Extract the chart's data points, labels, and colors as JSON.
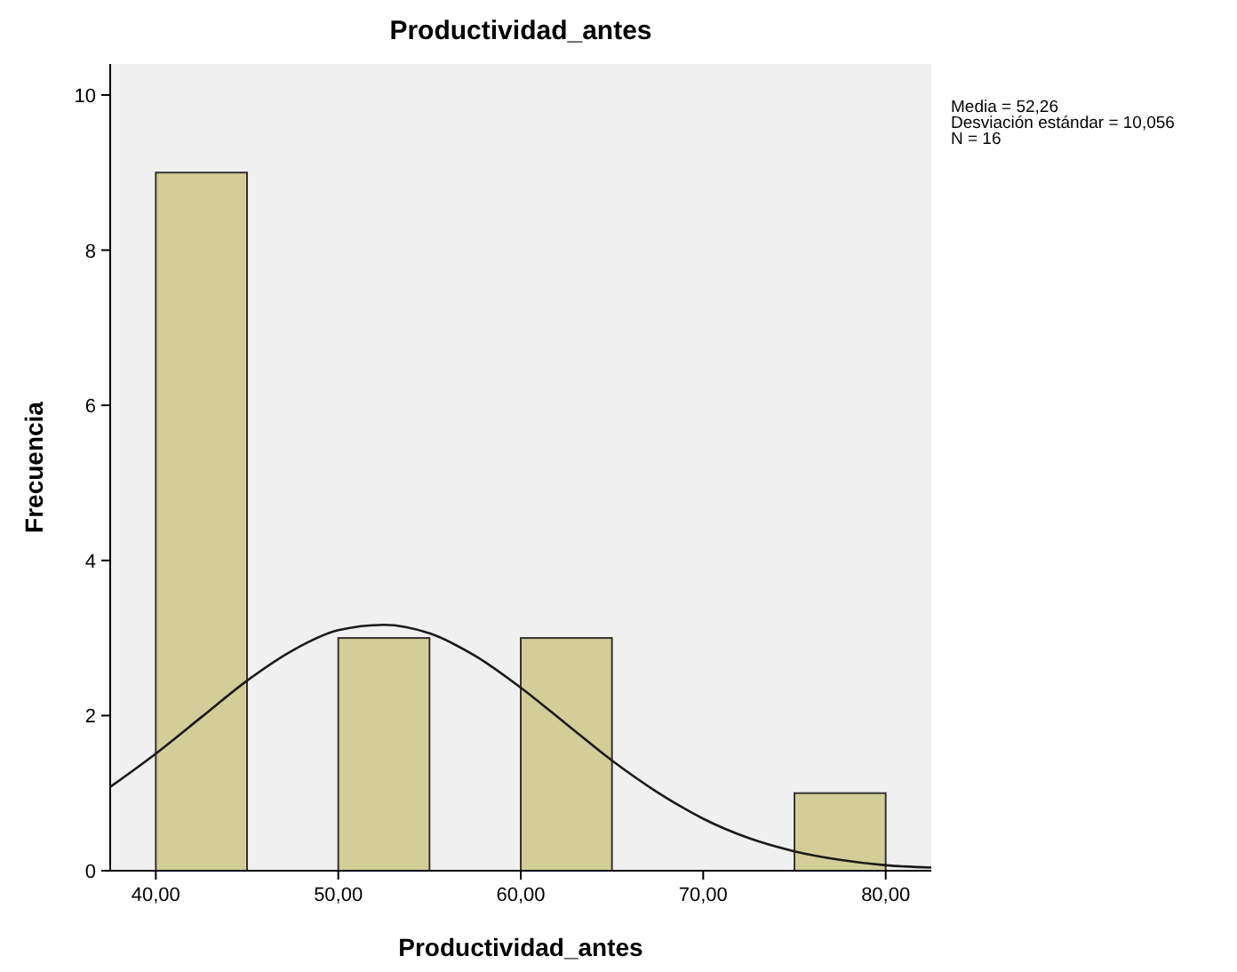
{
  "chart_data": {
    "type": "histogram",
    "title": "Productividad_antes",
    "xlabel": "Productividad_antes",
    "ylabel": "Frecuencia",
    "bins": [
      40,
      45,
      50,
      55,
      60,
      65,
      70,
      75,
      80
    ],
    "xlim": [
      37.5,
      82.5
    ],
    "xticks": [
      {
        "value": 40,
        "label": "40,00"
      },
      {
        "value": 50,
        "label": "50,00"
      },
      {
        "value": 60,
        "label": "60,00"
      },
      {
        "value": 70,
        "label": "70,00"
      },
      {
        "value": 80,
        "label": "80,00"
      }
    ],
    "ylim": [
      0,
      10.4
    ],
    "yticks": [
      0,
      2,
      4,
      6,
      8,
      10
    ],
    "grid": false,
    "annotations": [
      "Media = 52,26",
      "Desviación estándar = 10,056",
      "N = 16"
    ],
    "series": [
      {
        "color": "#d3ce97",
        "values": [
          9,
          0,
          3,
          0,
          3,
          0,
          0,
          1
        ]
      },
      {
        "type": "line",
        "color": "#1a1a1a",
        "x": [
          37.5,
          40,
          42.5,
          45,
          47.5,
          50,
          52.5,
          55,
          57.5,
          60,
          62.5,
          65,
          67.5,
          70,
          72.5,
          75,
          77.5,
          80,
          82.5
        ],
        "values": [
          1.08,
          1.51,
          1.98,
          2.45,
          2.84,
          3.1,
          3.17,
          3.06,
          2.77,
          2.36,
          1.89,
          1.42,
          1.01,
          0.67,
          0.42,
          0.25,
          0.14,
          0.07,
          0.04
        ]
      }
    ]
  }
}
